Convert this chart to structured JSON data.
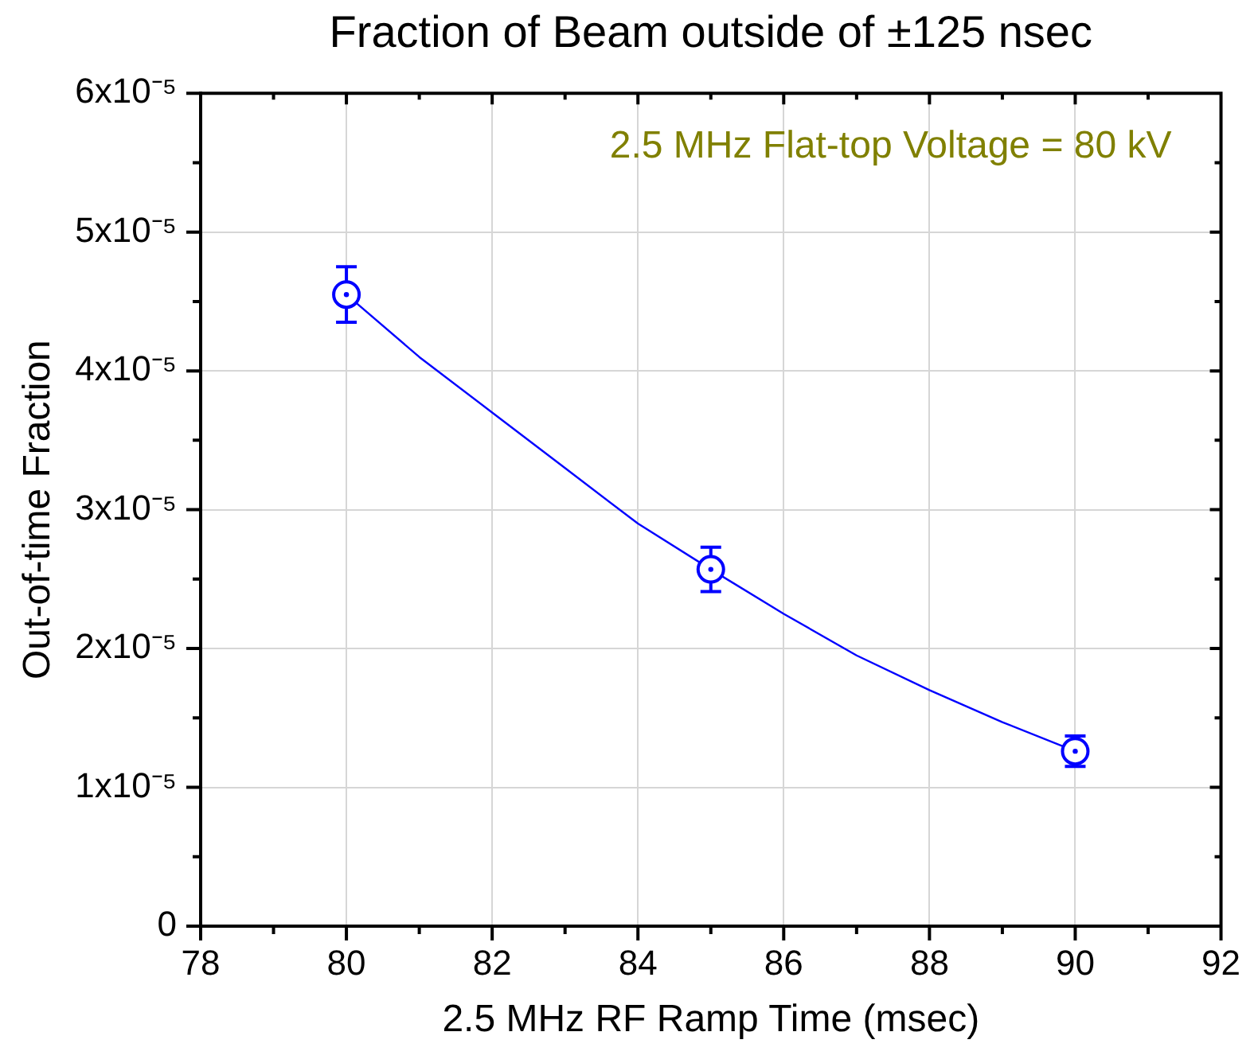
{
  "chart_data": {
    "type": "scatter",
    "title": "Fraction of Beam outside of ±125 nsec",
    "xlabel": "2.5 MHz RF Ramp Time (msec)",
    "ylabel": "Out-of-time Fraction",
    "annotations": [
      "2.5 MHz Flat-top Voltage = 80 kV"
    ],
    "xlim": [
      78,
      92
    ],
    "xticks": [
      78,
      {
        "value": 79,
        "label": null
      },
      80,
      {
        "value": 81,
        "label": null
      },
      82,
      {
        "value": 83,
        "label": null
      },
      84,
      {
        "value": 85,
        "label": null
      },
      86,
      {
        "value": 87,
        "label": null
      },
      88,
      {
        "value": 89,
        "label": null
      },
      90,
      {
        "value": 91,
        "label": null
      },
      92
    ],
    "ylim": [
      0,
      6e-05
    ],
    "yticks": [
      0,
      {
        "value": 5e-06,
        "label": null
      },
      {
        "value": 1e-05,
        "label": "1x10⁻⁵"
      },
      {
        "value": 1.5e-05,
        "label": null
      },
      {
        "value": 2e-05,
        "label": "2x10⁻⁵"
      },
      {
        "value": 2.5e-05,
        "label": null
      },
      {
        "value": 3e-05,
        "label": "3x10⁻⁵"
      },
      {
        "value": 3.5e-05,
        "label": null
      },
      {
        "value": 4e-05,
        "label": "4x10⁻⁵"
      },
      {
        "value": 4.5e-05,
        "label": null
      },
      {
        "value": 5e-05,
        "label": "5x10⁻⁵"
      },
      {
        "value": 5.5e-05,
        "label": null
      },
      {
        "value": 6e-05,
        "label": "6x10⁻⁵"
      }
    ],
    "grid": true,
    "series": [
      {
        "type": "line",
        "color": "#0000ff",
        "x": [
          80,
          81,
          82,
          83,
          84,
          85,
          86,
          87,
          88,
          89,
          90
        ],
        "values": [
          4.55e-05,
          4.1e-05,
          3.7e-05,
          3.3e-05,
          2.9e-05,
          2.57e-05,
          2.25e-05,
          1.95e-05,
          1.7e-05,
          1.47e-05,
          1.26e-05
        ],
        "marker": "none",
        "line_style": "solid"
      },
      {
        "type": "scatter",
        "color": "#0000ff",
        "x": [
          80,
          85,
          90
        ],
        "values": [
          4.55e-05,
          2.57e-05,
          1.26e-05
        ],
        "errors": [
          2e-06,
          1.6e-06,
          1.1e-06
        ],
        "marker": "circle"
      }
    ]
  }
}
